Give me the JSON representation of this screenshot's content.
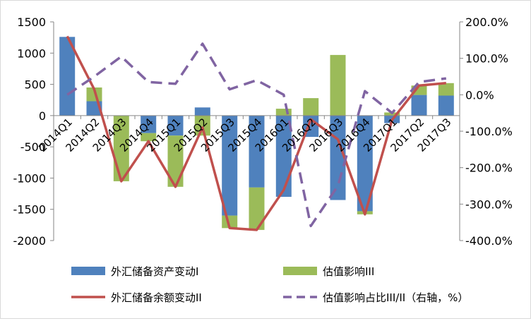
{
  "chart_data": {
    "type": "bar",
    "categories": [
      "2014Q1",
      "2014Q2",
      "2014Q3",
      "2014Q4",
      "2015Q1",
      "2015Q2",
      "2015Q3",
      "2015Q4",
      "2016Q1",
      "2016Q2",
      "2016Q3",
      "2016Q4",
      "2017Q1",
      "2017Q2",
      "2017Q3"
    ],
    "title": "",
    "xlabel": "",
    "ylabel": "",
    "ylim": [
      -2000,
      1500
    ],
    "y_ticks": [
      "1500",
      "1000",
      "500",
      "0",
      "-500",
      "-1000",
      "-1500",
      "-2000"
    ],
    "y2lim": [
      -400,
      200
    ],
    "y2_ticks": [
      "200.0%",
      "100.0%",
      "0.0%",
      "-100.0%",
      "-200.0%",
      "-300.0%",
      "-400.0%"
    ],
    "grid": false,
    "legend_position": "bottom",
    "series": [
      {
        "name": "外汇储备资产变动I",
        "type": "bar",
        "axis": "left",
        "stacked": true,
        "color": "#4f81bd",
        "values": [
          1260,
          230,
          0,
          -280,
          -320,
          130,
          -1600,
          -1150,
          -1300,
          -340,
          -1350,
          -1530,
          -120,
          330,
          320
        ]
      },
      {
        "name": "估值影响III",
        "type": "bar",
        "axis": "left",
        "stacked": true,
        "color": "#9bbb59",
        "values": [
          0,
          220,
          -1050,
          -130,
          -820,
          -320,
          -200,
          -680,
          110,
          280,
          970,
          -50,
          50,
          150,
          200
        ]
      },
      {
        "name": "外汇储备余额变动II",
        "type": "line",
        "axis": "left",
        "color": "#c0504d",
        "dash": "solid",
        "values": [
          1270,
          420,
          -1050,
          -410,
          -1140,
          -190,
          -1800,
          -1830,
          -1190,
          -60,
          -380,
          -1580,
          -70,
          480,
          520
        ]
      },
      {
        "name": "估值影响占比III/II（右轴，%）",
        "type": "line",
        "axis": "right",
        "color": "#8064a2",
        "dash": "dashed",
        "values": [
          0,
          50,
          105,
          35,
          30,
          140,
          15,
          40,
          0,
          -360,
          -250,
          10,
          -50,
          35,
          45
        ]
      }
    ]
  }
}
